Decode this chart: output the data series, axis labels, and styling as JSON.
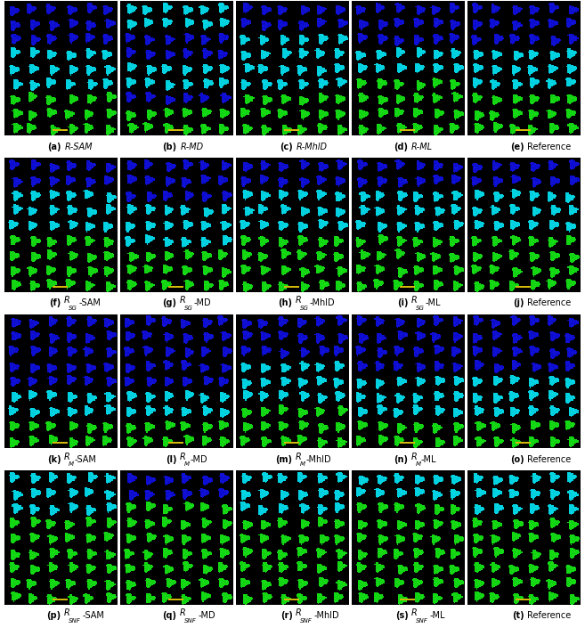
{
  "rows": 4,
  "cols": 5,
  "figsize": [
    6.57,
    7.05
  ],
  "label_data": [
    [
      {
        "letter": "a",
        "label": "R",
        "sub": null,
        "suffix": "-SAM"
      },
      {
        "letter": "b",
        "label": "R",
        "sub": null,
        "suffix": "-MD"
      },
      {
        "letter": "c",
        "label": "R",
        "sub": null,
        "suffix": "-MhlD"
      },
      {
        "letter": "d",
        "label": "R",
        "sub": null,
        "suffix": "-ML"
      },
      {
        "letter": "e",
        "label": "Reference",
        "sub": null,
        "suffix": ""
      }
    ],
    [
      {
        "letter": "f",
        "label": "R",
        "sub": "SG",
        "suffix": "-SAM"
      },
      {
        "letter": "g",
        "label": "R",
        "sub": "SG",
        "suffix": "-MD"
      },
      {
        "letter": "h",
        "label": "R",
        "sub": "SG",
        "suffix": "-MhlD"
      },
      {
        "letter": "i",
        "label": "R",
        "sub": "SG",
        "suffix": "-ML"
      },
      {
        "letter": "j",
        "label": "Reference",
        "sub": null,
        "suffix": ""
      }
    ],
    [
      {
        "letter": "k",
        "label": "R",
        "sub": "M",
        "suffix": "-SAM"
      },
      {
        "letter": "l",
        "label": "R",
        "sub": "M",
        "suffix": "-MD"
      },
      {
        "letter": "m",
        "label": "R",
        "sub": "M",
        "suffix": "-MhlD"
      },
      {
        "letter": "n",
        "label": "R",
        "sub": "M",
        "suffix": "-ML"
      },
      {
        "letter": "o",
        "label": "Reference",
        "sub": null,
        "suffix": ""
      }
    ],
    [
      {
        "letter": "p",
        "label": "R",
        "sub": "SNF",
        "suffix": "-SAM"
      },
      {
        "letter": "q",
        "label": "R",
        "sub": "SNF",
        "suffix": "-MD"
      },
      {
        "letter": "r",
        "label": "R",
        "sub": "SNF",
        "suffix": "-MhlD"
      },
      {
        "letter": "s",
        "label": "R",
        "sub": "SNF",
        "suffix": "-ML"
      },
      {
        "letter": "t",
        "label": "Reference",
        "sub": null,
        "suffix": ""
      }
    ]
  ],
  "blue": [
    15,
    15,
    210
  ],
  "cyan": [
    0,
    210,
    225
  ],
  "green": [
    20,
    215,
    20
  ],
  "yellow": [
    210,
    185,
    10
  ],
  "patterns": [
    [
      [
        {
          "c": "blue",
          "n": 3
        },
        {
          "c": "cyan",
          "n": 3
        },
        {
          "c": "green",
          "n": 3
        }
      ],
      [
        {
          "c": "cyan",
          "n": 2
        },
        {
          "c": "blue",
          "n": 2
        },
        {
          "c": "cyan",
          "n": 2
        },
        {
          "c": "blue",
          "n": 1
        },
        {
          "c": "green",
          "n": 2
        }
      ],
      [
        {
          "c": "blue",
          "n": 2
        },
        {
          "c": "cyan",
          "n": 4
        },
        {
          "c": "green",
          "n": 3
        }
      ],
      [
        {
          "c": "blue",
          "n": 3
        },
        {
          "c": "cyan",
          "n": 2
        },
        {
          "c": "green",
          "n": 4
        }
      ],
      [
        {
          "c": "blue",
          "n": 3
        },
        {
          "c": "cyan",
          "n": 3
        },
        {
          "c": "green",
          "n": 3
        }
      ]
    ],
    [
      [
        {
          "c": "blue",
          "n": 2
        },
        {
          "c": "cyan",
          "n": 3
        },
        {
          "c": "green",
          "n": 4
        }
      ],
      [
        {
          "c": "blue",
          "n": 3
        },
        {
          "c": "cyan",
          "n": 3
        },
        {
          "c": "green",
          "n": 3
        }
      ],
      [
        {
          "c": "blue",
          "n": 2
        },
        {
          "c": "cyan",
          "n": 3
        },
        {
          "c": "green",
          "n": 4
        }
      ],
      [
        {
          "c": "blue",
          "n": 2
        },
        {
          "c": "cyan",
          "n": 3
        },
        {
          "c": "green",
          "n": 4
        }
      ],
      [
        {
          "c": "blue",
          "n": 2
        },
        {
          "c": "cyan",
          "n": 3
        },
        {
          "c": "green",
          "n": 4
        }
      ]
    ],
    [
      [
        {
          "c": "blue",
          "n": 5
        },
        {
          "c": "cyan",
          "n": 2
        },
        {
          "c": "green",
          "n": 2
        }
      ],
      [
        {
          "c": "blue",
          "n": 5
        },
        {
          "c": "cyan",
          "n": 2
        },
        {
          "c": "green",
          "n": 2
        }
      ],
      [
        {
          "c": "blue",
          "n": 3
        },
        {
          "c": "cyan",
          "n": 3
        },
        {
          "c": "green",
          "n": 3
        }
      ],
      [
        {
          "c": "blue",
          "n": 4
        },
        {
          "c": "cyan",
          "n": 3
        },
        {
          "c": "green",
          "n": 2
        }
      ],
      [
        {
          "c": "blue",
          "n": 4
        },
        {
          "c": "cyan",
          "n": 3
        },
        {
          "c": "green",
          "n": 2
        }
      ]
    ],
    [
      [
        {
          "c": "cyan",
          "n": 3
        },
        {
          "c": "green",
          "n": 6
        }
      ],
      [
        {
          "c": "blue",
          "n": 2
        },
        {
          "c": "green",
          "n": 7
        }
      ],
      [
        {
          "c": "cyan",
          "n": 3
        },
        {
          "c": "green",
          "n": 6
        }
      ],
      [
        {
          "c": "cyan",
          "n": 2
        },
        {
          "c": "green",
          "n": 7
        }
      ],
      [
        {
          "c": "cyan",
          "n": 3
        },
        {
          "c": "green",
          "n": 6
        }
      ]
    ]
  ]
}
